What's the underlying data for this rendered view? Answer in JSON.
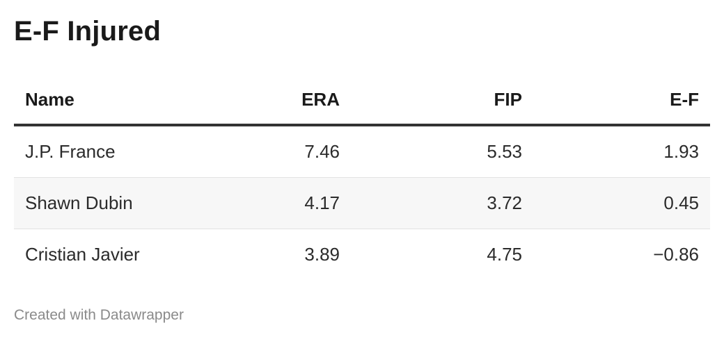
{
  "chart_data": {
    "type": "table",
    "title": "E-F Injured",
    "columns": [
      "Name",
      "ERA",
      "FIP",
      "E-F"
    ],
    "rows": [
      [
        "J.P. France",
        "7.46",
        "5.53",
        "1.93"
      ],
      [
        "Shawn Dubin",
        "4.17",
        "3.72",
        "0.45"
      ],
      [
        "Cristian Javier",
        "3.89",
        "4.75",
        "−0.86"
      ]
    ]
  },
  "footer": {
    "credit": "Created with Datawrapper"
  },
  "colors": {
    "header_rule": "#333333",
    "row_divider": "#e2e2e2",
    "alt_row_background": "#f7f7f7",
    "footer_text": "#8a8a8a"
  }
}
